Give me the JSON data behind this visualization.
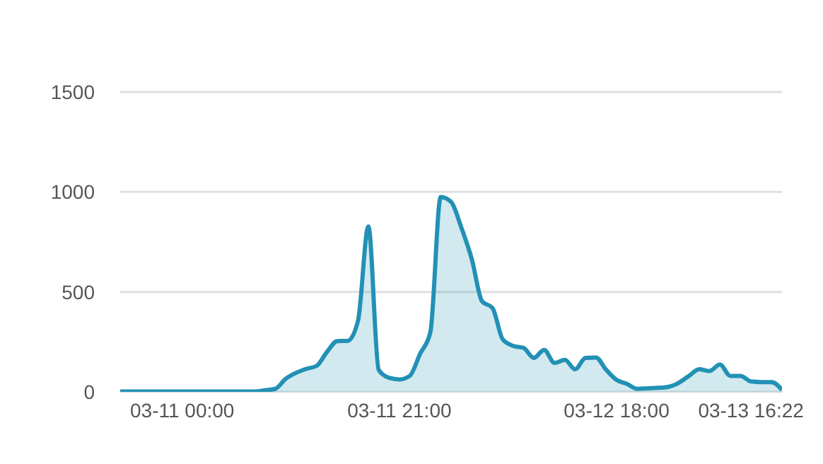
{
  "chart_data": {
    "type": "area",
    "categories": [
      null,
      null,
      null,
      null,
      null,
      null,
      "03-11 00:00",
      null,
      null,
      null,
      null,
      null,
      null,
      null,
      null,
      null,
      null,
      null,
      null,
      null,
      null,
      null,
      null,
      null,
      null,
      null,
      null,
      "03-11 21:00",
      null,
      null,
      null,
      null,
      null,
      null,
      null,
      null,
      null,
      null,
      null,
      null,
      null,
      null,
      null,
      null,
      null,
      null,
      null,
      null,
      "03-12 18:00",
      null,
      null,
      null,
      null,
      null,
      null,
      null,
      null,
      null,
      null,
      null,
      null,
      "03-13 16:22",
      null,
      null,
      null
    ],
    "series": [
      {
        "color": "#2291b5",
        "values": [
          2,
          2,
          2,
          2,
          2,
          2,
          2,
          2,
          2,
          2,
          2,
          2,
          2,
          2,
          8,
          15,
          65,
          95,
          115,
          130,
          200,
          254,
          255,
          356,
          827,
          110,
          70,
          62,
          80,
          190,
          300,
          975,
          950,
          820,
          664,
          452,
          420,
          262,
          230,
          220,
          170,
          210,
          145,
          160,
          113,
          170,
          172,
          110,
          60,
          40,
          15,
          18,
          20,
          25,
          45,
          80,
          113,
          104,
          137,
          80,
          80,
          52,
          49,
          49,
          10
        ]
      }
    ],
    "ylim": [
      0,
      1500
    ],
    "yticks": [
      0,
      500,
      1000,
      1500
    ],
    "grid": "y"
  }
}
